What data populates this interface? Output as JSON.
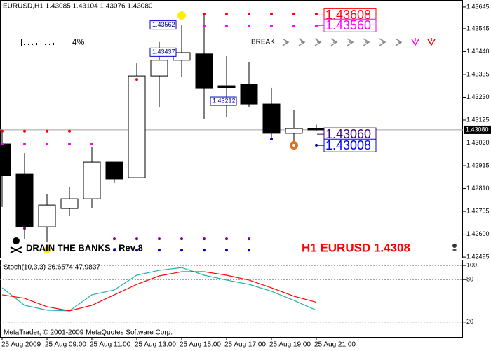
{
  "chart_data": [
    {
      "type": "candlestick",
      "title": "EURUSD,H1  1.43085 1.43104 1.43076 1.43080",
      "categories": [
        "25 Aug 2009",
        null,
        "25 Aug 09:00",
        null,
        "25 Aug 11:00",
        null,
        "25 Aug 13:00",
        null,
        "25 Aug 15:00",
        null,
        "25 Aug 17:00",
        null,
        "25 Aug 19:00",
        null,
        "25 Aug 21:00"
      ],
      "open": [
        1.43015,
        1.42876,
        1.42634,
        1.42718,
        1.42763,
        1.42931,
        1.4286,
        1.43328,
        1.434,
        1.43429,
        1.43283,
        1.4329,
        1.43199,
        1.43064,
        1.43085
      ],
      "high": [
        1.4308,
        1.42973,
        1.42786,
        1.42818,
        1.42999,
        1.42931,
        1.43386,
        1.43484,
        1.43564,
        1.43619,
        1.43419,
        1.43393,
        1.43274,
        1.4317,
        1.43104
      ],
      "low": [
        1.42725,
        1.42579,
        1.42563,
        1.42686,
        1.42721,
        1.42838,
        1.42857,
        1.43186,
        1.43322,
        1.43128,
        1.43138,
        1.43186,
        1.43041,
        1.43012,
        1.43076
      ],
      "close": [
        1.4287,
        1.42634,
        1.42734,
        1.42763,
        1.42931,
        1.42854,
        1.43328,
        1.434,
        1.43435,
        1.4327,
        1.43274,
        1.43199,
        1.43064,
        1.43086,
        1.4308
      ],
      "up_color": "#ffffff",
      "down_color": "#000000",
      "ylim": [
        1.42489,
        1.43677
      ],
      "yticks": [
        1.43645,
        1.43545,
        {
          "value": 1.4344,
          "label": "1.43440"
        },
        1.43335,
        {
          "value": 1.4323,
          "label": "1.43230"
        },
        1.43125,
        {
          "value": 1.4302,
          "label": "1.43020"
        },
        1.42915,
        {
          "value": 1.4281,
          "label": "1.42810"
        },
        1.42705,
        {
          "value": 1.426,
          "label": "1.42600"
        },
        1.42495
      ],
      "current_price": {
        "value": 1.4308,
        "label": "1.43080"
      },
      "series": [
        {
          "color": "#ff0000",
          "values": [
            1.43074,
            1.43074,
            1.43074,
            1.43074,
            null,
            null,
            1.43312,
            null,
            null,
            1.43613,
            1.43613,
            1.43613,
            1.43613,
            1.43613,
            1.43613
          ]
        },
        {
          "color": "#ff00ff",
          "values": [
            1.43015,
            1.43015,
            1.43015,
            1.43015,
            1.43015,
            null,
            null,
            null,
            null,
            1.43558,
            1.43558,
            1.43558,
            1.43558,
            1.43558,
            1.43558
          ]
        },
        {
          "color": "#800080",
          "values": [
            null,
            1.42627,
            null,
            null,
            null,
            1.42579,
            1.42579,
            1.42579,
            1.42579,
            1.42579,
            1.42579,
            1.42579,
            null,
            null,
            null
          ]
        },
        {
          "color": "#0000cc",
          "values": [
            null,
            null,
            null,
            null,
            null,
            1.42527,
            1.42527,
            1.42527,
            1.42527,
            1.42527,
            1.42527,
            1.42527,
            1.43038,
            null,
            1.43009
          ]
        }
      ],
      "level_labels": [
        {
          "value": 1.43562,
          "label": "1.43562"
        },
        {
          "value": 1.43437,
          "label": "1.43437"
        },
        {
          "value": 1.43212,
          "label": "1.43212"
        }
      ],
      "price_labels": [
        {
          "value": 1.43608,
          "label": "1.43608",
          "color": "#ff0000"
        },
        {
          "value": 1.4356,
          "label": "1.43560",
          "color": "#ff00ff"
        },
        {
          "value": 1.4306,
          "label": "1.43060",
          "color": "#400080"
        },
        {
          "value": 1.43008,
          "label": "1.43008",
          "color": "#0000ff"
        }
      ],
      "annotations": [
        "BREAK",
        "4%",
        "DRAIN THE BANKS - Rev 8",
        "H1 EURUSD 1.4308"
      ]
    },
    {
      "type": "line",
      "title": "Stoch(10,3,3) 36.6574 47.9837",
      "series": [
        {
          "color": "#20b2aa",
          "values": [
            68.4,
            43.7,
            36.8,
            35.8,
            58.5,
            65.4,
            86.2,
            93.1,
            97.0,
            86.2,
            79.3,
            73.3,
            63.5,
            50.6,
            36.6574
          ]
        },
        {
          "color": "#ff0000",
          "values": [
            58.5,
            53.6,
            41.7,
            35.8,
            43.7,
            58.5,
            73.3,
            85.2,
            91.1,
            91.1,
            86.2,
            79.3,
            68.4,
            56.5,
            47.9837
          ]
        }
      ],
      "ylim": [
        -1,
        108
      ],
      "yticks": [
        100,
        80,
        20
      ],
      "grid": true,
      "footer": "MetaTrader, © 2001-2009 MetaQuotes Software Corp."
    }
  ]
}
